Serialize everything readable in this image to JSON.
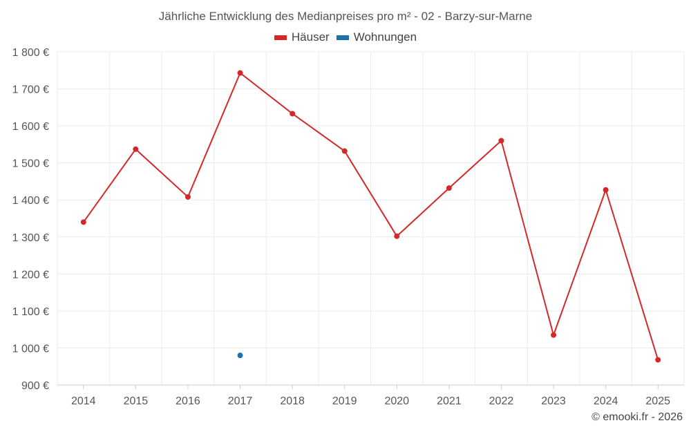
{
  "chart_data": {
    "type": "line",
    "title": "Jährliche Entwicklung des Medianpreises pro m² - 02 - Barzy-sur-Marne",
    "xlabel": "",
    "ylabel": "",
    "categories": [
      "2014",
      "2015",
      "2016",
      "2017",
      "2018",
      "2019",
      "2020",
      "2021",
      "2022",
      "2023",
      "2024",
      "2025"
    ],
    "ylim": [
      900,
      1800
    ],
    "yticks": [
      900,
      1000,
      1100,
      1200,
      1300,
      1400,
      1500,
      1600,
      1700,
      1800
    ],
    "ytick_labels": [
      "900 €",
      "1 000 €",
      "1 100 €",
      "1 200 €",
      "1 300 €",
      "1 400 €",
      "1 500 €",
      "1 600 €",
      "1 700 €",
      "1 800 €"
    ],
    "grid": true,
    "legend_position": "top-center",
    "series": [
      {
        "name": "Häuser",
        "color": "#d62728",
        "values": [
          1340,
          1537,
          1408,
          1743,
          1633,
          1532,
          1302,
          1432,
          1560,
          1035,
          1427,
          968
        ]
      },
      {
        "name": "Wohnungen",
        "color": "#1f6fa8",
        "values": [
          null,
          null,
          null,
          980,
          null,
          null,
          null,
          null,
          null,
          null,
          null,
          null
        ]
      }
    ]
  },
  "credit": "© emooki.fr - 2026"
}
